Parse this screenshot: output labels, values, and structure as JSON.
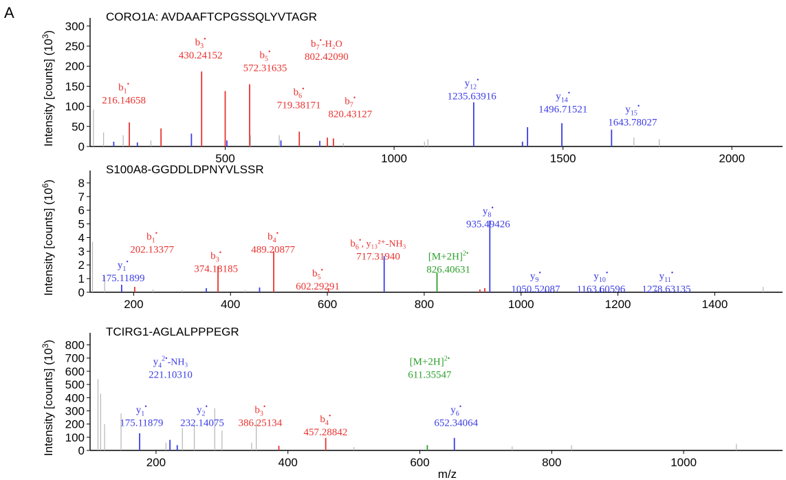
{
  "panel_label": "A",
  "colors": {
    "b": "#e8322f",
    "y": "#3c3ce6",
    "prec": "#2ca02c",
    "noise": "#b4b4b4"
  },
  "chart_data": [
    {
      "type": "bar",
      "title": "CORO1A: AVDAAFTCPGSSQLYVTAGR",
      "ylabel": "Intensity [counts] (10",
      "ylabel_exp": "3",
      "ylabel_close": ")",
      "xlabel": "",
      "xlim": [
        100,
        2150
      ],
      "ylim": [
        0,
        310
      ],
      "xticks": [
        500,
        1000,
        1500,
        2000
      ],
      "yticks": [
        0,
        50,
        100,
        150,
        200,
        250,
        300
      ],
      "peaks": [
        {
          "mz": 110,
          "v": 92,
          "t": "noise"
        },
        {
          "mz": 140,
          "v": 35,
          "t": "noise"
        },
        {
          "mz": 170,
          "v": 12,
          "t": "y"
        },
        {
          "mz": 198,
          "v": 28,
          "t": "noise"
        },
        {
          "mz": 216.15,
          "v": 60,
          "t": "b"
        },
        {
          "mz": 240,
          "v": 10,
          "t": "y"
        },
        {
          "mz": 280,
          "v": 15,
          "t": "noise"
        },
        {
          "mz": 310,
          "v": 45,
          "t": "b"
        },
        {
          "mz": 400,
          "v": 32,
          "t": "y"
        },
        {
          "mz": 430.24,
          "v": 187,
          "t": "b"
        },
        {
          "mz": 500,
          "v": 138,
          "t": "b"
        },
        {
          "mz": 505,
          "v": 15,
          "t": "y"
        },
        {
          "mz": 572.32,
          "v": 155,
          "t": "b"
        },
        {
          "mz": 575,
          "v": 28,
          "t": "noise"
        },
        {
          "mz": 660,
          "v": 28,
          "t": "noise"
        },
        {
          "mz": 665,
          "v": 15,
          "t": "y"
        },
        {
          "mz": 719.38,
          "v": 37,
          "t": "b"
        },
        {
          "mz": 780,
          "v": 14,
          "t": "y"
        },
        {
          "mz": 802.42,
          "v": 22,
          "t": "b"
        },
        {
          "mz": 820.43,
          "v": 20,
          "t": "b"
        },
        {
          "mz": 850,
          "v": 8,
          "t": "noise"
        },
        {
          "mz": 1090,
          "v": 12,
          "t": "noise"
        },
        {
          "mz": 1100,
          "v": 18,
          "t": "noise"
        },
        {
          "mz": 1235.64,
          "v": 110,
          "t": "y"
        },
        {
          "mz": 1380,
          "v": 12,
          "t": "y"
        },
        {
          "mz": 1395,
          "v": 48,
          "t": "y"
        },
        {
          "mz": 1496.72,
          "v": 58,
          "t": "y"
        },
        {
          "mz": 1643.78,
          "v": 42,
          "t": "y"
        },
        {
          "mz": 1710,
          "v": 22,
          "t": "noise"
        },
        {
          "mz": 1785,
          "v": 18,
          "t": "noise"
        }
      ],
      "annotations": [
        {
          "ion": "b",
          "sub": "1",
          "sup": "•",
          "mz": "216.14658",
          "c": "b",
          "ax": 200,
          "ay": 140
        },
        {
          "ion": "b",
          "sub": "3",
          "sup": "•",
          "mz": "430.24152",
          "c": "b",
          "ax": 427,
          "ay": 252
        },
        {
          "ion": "b",
          "sub": "5",
          "sup": "•",
          "mz": "572.31635",
          "c": "b",
          "ax": 618,
          "ay": 220
        },
        {
          "ion": "b",
          "sub": "7",
          "sup": "•",
          "extra": "-H₂O",
          "mz": "802.42090",
          "c": "b",
          "ax": 800,
          "ay": 248
        },
        {
          "ion": "b",
          "sub": "6",
          "sup": "•",
          "mz": "719.38171",
          "c": "b",
          "ax": 718,
          "ay": 128
        },
        {
          "ion": "b",
          "sub": "7",
          "sup": "•",
          "mz": "820.43127",
          "c": "b",
          "ax": 870,
          "ay": 105
        },
        {
          "ion": "y",
          "sub": "12",
          "sup": "•",
          "mz": "1235.63916",
          "c": "y",
          "ax": 1230,
          "ay": 150
        },
        {
          "ion": "y",
          "sub": "14",
          "sup": "•",
          "mz": "1496.71521",
          "c": "y",
          "ax": 1500,
          "ay": 117
        },
        {
          "ion": "y",
          "sub": "15",
          "sup": "•",
          "mz": "1643.78027",
          "c": "y",
          "ax": 1706,
          "ay": 85
        }
      ]
    },
    {
      "type": "bar",
      "title": "S100A8-GGDDLDPNYVLSSR",
      "ylabel": "Intensity [counts] (10",
      "ylabel_exp": "6",
      "ylabel_close": ")",
      "xlabel": "",
      "xlim": [
        110,
        1540
      ],
      "ylim": [
        0,
        8.6
      ],
      "xticks": [
        200,
        400,
        600,
        800,
        1000,
        1200,
        1400
      ],
      "yticks": [
        0,
        1,
        2,
        3,
        4,
        5,
        6,
        7,
        8
      ],
      "peaks": [
        {
          "mz": 115,
          "v": 3.7,
          "t": "noise"
        },
        {
          "mz": 140,
          "v": 1.2,
          "t": "noise"
        },
        {
          "mz": 175.12,
          "v": 0.55,
          "t": "y"
        },
        {
          "mz": 202.13,
          "v": 0.4,
          "t": "b"
        },
        {
          "mz": 240,
          "v": 0.2,
          "t": "noise"
        },
        {
          "mz": 300,
          "v": 0.15,
          "t": "noise"
        },
        {
          "mz": 350,
          "v": 0.3,
          "t": "y"
        },
        {
          "mz": 374.18,
          "v": 1.9,
          "t": "b"
        },
        {
          "mz": 430,
          "v": 0.15,
          "t": "noise"
        },
        {
          "mz": 460,
          "v": 0.35,
          "t": "y"
        },
        {
          "mz": 489.21,
          "v": 3.0,
          "t": "b"
        },
        {
          "mz": 602.29,
          "v": 0.3,
          "t": "b"
        },
        {
          "mz": 717.32,
          "v": 2.65,
          "t": "y"
        },
        {
          "mz": 826.41,
          "v": 1.45,
          "t": "prec"
        },
        {
          "mz": 915,
          "v": 0.2,
          "t": "b"
        },
        {
          "mz": 925,
          "v": 0.3,
          "t": "b"
        },
        {
          "mz": 935.49,
          "v": 5.25,
          "t": "y"
        },
        {
          "mz": 1050.52,
          "v": 0.2,
          "t": "y"
        },
        {
          "mz": 1163.61,
          "v": 0.35,
          "t": "y"
        },
        {
          "mz": 1278.63,
          "v": 0.15,
          "t": "y"
        },
        {
          "mz": 1500,
          "v": 0.4,
          "t": "noise"
        }
      ],
      "annotations": [
        {
          "ion": "y",
          "sub": "1",
          "sup": "•",
          "mz": "175.11899",
          "c": "y",
          "ax": 178,
          "ay": 1.75
        },
        {
          "ion": "b",
          "sub": "1",
          "sup": "•",
          "mz": "202.13377",
          "c": "b",
          "ax": 238,
          "ay": 3.85
        },
        {
          "ion": "b",
          "sub": "3",
          "sup": "•",
          "mz": "374.18185",
          "c": "b",
          "ax": 370,
          "ay": 2.45
        },
        {
          "ion": "b",
          "sub": "4",
          "sup": "•",
          "mz": "489.20877",
          "c": "b",
          "ax": 488,
          "ay": 3.85
        },
        {
          "ion": "b",
          "sub": "5",
          "sup": "•",
          "mz": "602.29291",
          "c": "b",
          "ax": 580,
          "ay": 1.15
        },
        {
          "ion": "b",
          "sub": "6",
          "sup": "•",
          "extra": ", y₁₃²⁺-NH₃",
          "mz": "717.31940",
          "c": "b",
          "ax": 705,
          "ay": 3.35
        },
        {
          "ion": "[M+2H]",
          "sub": "",
          "sup": "2•",
          "mz": "826.40631",
          "c": "prec",
          "ax": 850,
          "ay": 2.4
        },
        {
          "ion": "y",
          "sub": "8",
          "sup": "•",
          "mz": "935.49426",
          "c": "y",
          "ax": 932,
          "ay": 5.7
        },
        {
          "ion": "y",
          "sub": "9",
          "sup": "•",
          "mz": "1050.52087",
          "c": "y",
          "ax": 1030,
          "ay": 0.95
        },
        {
          "ion": "y",
          "sub": "10",
          "sup": "•",
          "mz": "1163.60596",
          "c": "y",
          "ax": 1165,
          "ay": 0.95
        },
        {
          "ion": "y",
          "sub": "11",
          "sup": "•",
          "mz": "1278.63135",
          "c": "y",
          "ax": 1300,
          "ay": 0.95
        }
      ]
    },
    {
      "type": "bar",
      "title": "TCIRG1-AGLALPPPEGR",
      "ylabel": "Intensity [counts] (10",
      "ylabel_exp": "3",
      "ylabel_close": ")",
      "xlabel": "m/z",
      "xlim": [
        100,
        1150
      ],
      "ylim": [
        0,
        860
      ],
      "xticks": [
        200,
        400,
        600,
        800,
        1000
      ],
      "yticks": [
        0,
        100,
        200,
        300,
        400,
        500,
        600,
        700,
        800
      ],
      "peaks": [
        {
          "mz": 112,
          "v": 540,
          "t": "noise"
        },
        {
          "mz": 116,
          "v": 430,
          "t": "noise"
        },
        {
          "mz": 122,
          "v": 200,
          "t": "noise"
        },
        {
          "mz": 147,
          "v": 280,
          "t": "noise"
        },
        {
          "mz": 175.12,
          "v": 130,
          "t": "y"
        },
        {
          "mz": 215,
          "v": 60,
          "t": "noise"
        },
        {
          "mz": 221.1,
          "v": 80,
          "t": "y"
        },
        {
          "mz": 232.14,
          "v": 40,
          "t": "y"
        },
        {
          "mz": 240,
          "v": 170,
          "t": "noise"
        },
        {
          "mz": 258,
          "v": 200,
          "t": "noise"
        },
        {
          "mz": 289,
          "v": 320,
          "t": "noise"
        },
        {
          "mz": 300,
          "v": 150,
          "t": "noise"
        },
        {
          "mz": 345,
          "v": 60,
          "t": "noise"
        },
        {
          "mz": 352,
          "v": 230,
          "t": "noise"
        },
        {
          "mz": 386.25,
          "v": 35,
          "t": "b"
        },
        {
          "mz": 457.29,
          "v": 95,
          "t": "b"
        },
        {
          "mz": 500,
          "v": 25,
          "t": "noise"
        },
        {
          "mz": 611.36,
          "v": 40,
          "t": "prec"
        },
        {
          "mz": 652.34,
          "v": 95,
          "t": "y"
        },
        {
          "mz": 740,
          "v": 30,
          "t": "noise"
        },
        {
          "mz": 830,
          "v": 40,
          "t": "noise"
        },
        {
          "mz": 1080,
          "v": 50,
          "t": "noise"
        }
      ],
      "annotations": [
        {
          "ion": "y",
          "sub": "1",
          "sup": "•",
          "mz": "175.11879",
          "c": "y",
          "ax": 178,
          "ay": 285
        },
        {
          "ion": "y",
          "sub": "4",
          "sup": "2•",
          "extra": "-NH₃",
          "mz": "221.10310",
          "c": "y",
          "ax": 222,
          "ay": 650
        },
        {
          "ion": "y",
          "sub": "2",
          "sup": "•",
          "mz": "232.14075",
          "c": "y",
          "ax": 270,
          "ay": 285
        },
        {
          "ion": "b",
          "sub": "3",
          "sup": "•",
          "mz": "386.25134",
          "c": "b",
          "ax": 358,
          "ay": 285
        },
        {
          "ion": "b",
          "sub": "4",
          "sup": "•",
          "mz": "457.28842",
          "c": "b",
          "ax": 457,
          "ay": 215
        },
        {
          "ion": "[M+2H]",
          "sub": "",
          "sup": "2•",
          "mz": "611.35547",
          "c": "prec",
          "ax": 615,
          "ay": 650
        },
        {
          "ion": "y",
          "sub": "6",
          "sup": "•",
          "mz": "652.34064",
          "c": "y",
          "ax": 655,
          "ay": 285
        }
      ]
    }
  ]
}
